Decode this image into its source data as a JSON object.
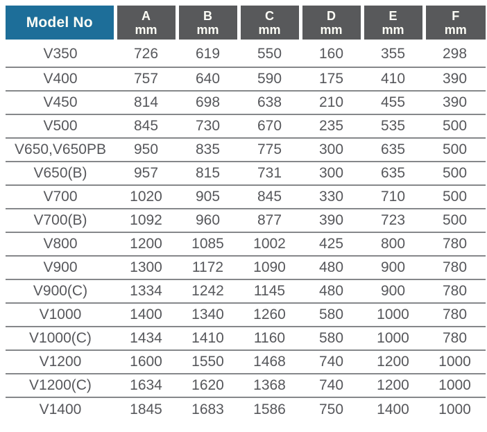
{
  "table": {
    "header": {
      "model_label": "Model No",
      "dims": [
        {
          "letter": "A",
          "unit": "mm"
        },
        {
          "letter": "B",
          "unit": "mm"
        },
        {
          "letter": "C",
          "unit": "mm"
        },
        {
          "letter": "D",
          "unit": "mm"
        },
        {
          "letter": "E",
          "unit": "mm"
        },
        {
          "letter": "F",
          "unit": "mm"
        }
      ]
    },
    "rows": [
      {
        "model": "V350",
        "values": [
          "726",
          "619",
          "550",
          "160",
          "355",
          "298"
        ]
      },
      {
        "model": "V400",
        "values": [
          "757",
          "640",
          "590",
          "175",
          "410",
          "390"
        ]
      },
      {
        "model": "V450",
        "values": [
          "814",
          "698",
          "638",
          "210",
          "455",
          "390"
        ]
      },
      {
        "model": "V500",
        "values": [
          "845",
          "730",
          "670",
          "235",
          "535",
          "500"
        ]
      },
      {
        "model": "V650,V650PB",
        "values": [
          "950",
          "835",
          "775",
          "300",
          "635",
          "500"
        ]
      },
      {
        "model": "V650(B)",
        "values": [
          "957",
          "815",
          "731",
          "300",
          "635",
          "500"
        ]
      },
      {
        "model": "V700",
        "values": [
          "1020",
          "905",
          "845",
          "330",
          "710",
          "500"
        ]
      },
      {
        "model": "V700(B)",
        "values": [
          "1092",
          "960",
          "877",
          "390",
          "723",
          "500"
        ]
      },
      {
        "model": "V800",
        "values": [
          "1200",
          "1085",
          "1002",
          "425",
          "800",
          "780"
        ]
      },
      {
        "model": "V900",
        "values": [
          "1300",
          "1172",
          "1090",
          "480",
          "900",
          "780"
        ]
      },
      {
        "model": "V900(C)",
        "values": [
          "1334",
          "1242",
          "1145",
          "480",
          "900",
          "780"
        ]
      },
      {
        "model": "V1000",
        "values": [
          "1400",
          "1340",
          "1260",
          "580",
          "1000",
          "780"
        ]
      },
      {
        "model": "V1000(C)",
        "values": [
          "1434",
          "1410",
          "1160",
          "580",
          "1000",
          "780"
        ]
      },
      {
        "model": "V1200",
        "values": [
          "1600",
          "1550",
          "1468",
          "740",
          "1200",
          "1000"
        ]
      },
      {
        "model": "V1200(C)",
        "values": [
          "1634",
          "1620",
          "1368",
          "740",
          "1200",
          "1000"
        ]
      },
      {
        "model": "V1400",
        "values": [
          "1845",
          "1683",
          "1586",
          "750",
          "1400",
          "1000"
        ]
      }
    ],
    "colors": {
      "model_header_bg": "#1d6e99",
      "dim_header_bg": "#58595b",
      "header_text": "#fdfdf6",
      "body_text": "#56575b",
      "separator": "#85878a"
    }
  }
}
